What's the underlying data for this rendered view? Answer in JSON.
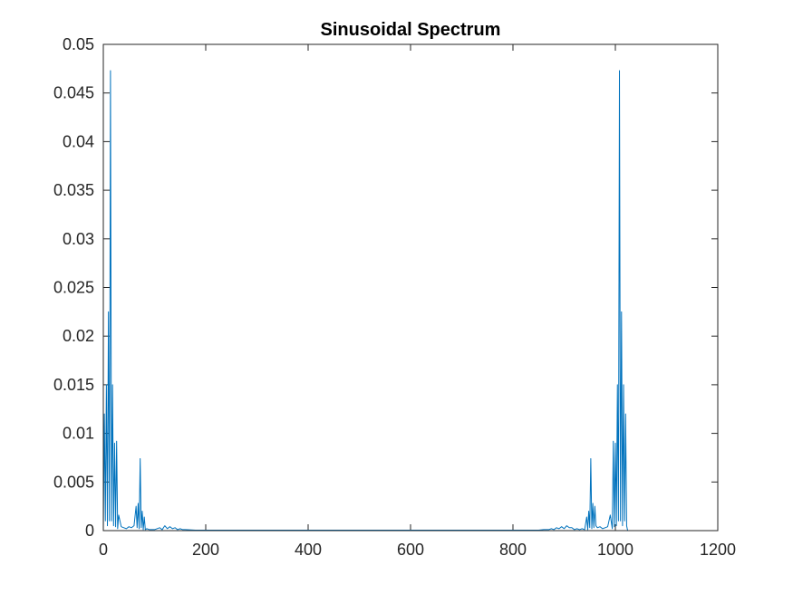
{
  "chart_data": {
    "type": "line",
    "title": "Sinusoidal Spectrum",
    "xlabel": "",
    "ylabel": "",
    "xlim": [
      0,
      1200
    ],
    "ylim": [
      0,
      0.05
    ],
    "xticks": [
      0,
      200,
      400,
      600,
      800,
      1000,
      1200
    ],
    "xtick_labels": [
      "0",
      "200",
      "400",
      "600",
      "800",
      "1000",
      "1200"
    ],
    "yticks": [
      0,
      0.005,
      0.01,
      0.015,
      0.02,
      0.025,
      0.03,
      0.035,
      0.04,
      0.045,
      0.05
    ],
    "ytick_labels": [
      "0",
      "0.005",
      "0.01",
      "0.015",
      "0.02",
      "0.025",
      "0.03",
      "0.035",
      "0.04",
      "0.045",
      "0.05"
    ],
    "grid": false,
    "line_color": "#0072BD",
    "axis_color": "#262626",
    "series": [
      {
        "x": [
          0,
          2,
          4,
          6,
          8,
          10,
          12,
          14,
          16,
          18,
          20,
          22,
          24,
          26,
          28,
          30,
          35,
          40,
          45,
          50,
          55,
          60,
          64,
          66,
          68,
          70,
          72,
          74,
          76,
          78,
          80,
          82,
          85,
          90,
          100,
          110,
          115,
          120,
          125,
          130,
          135,
          140,
          145,
          150,
          155,
          160,
          180,
          200,
          300,
          400,
          500,
          600,
          700,
          800,
          850,
          860,
          870,
          875,
          880,
          885,
          890,
          895,
          900,
          905,
          910,
          915,
          920,
          925,
          930,
          935,
          940,
          944,
          946,
          948,
          950,
          952,
          954,
          956,
          958,
          960,
          962,
          965,
          970,
          975,
          980,
          985,
          990,
          994,
          996,
          998,
          1000,
          1002,
          1004,
          1006,
          1008,
          1010,
          1012,
          1014,
          1016,
          1018,
          1020,
          1022,
          1024
        ],
        "y": [
          0.0,
          0.012,
          0.001,
          0.015,
          0.0005,
          0.0225,
          0.001,
          0.0473,
          0.001,
          0.015,
          0.0005,
          0.009,
          0.0004,
          0.0092,
          0.0002,
          0.0016,
          0.0004,
          0.0003,
          0.0002,
          0.0004,
          0.0003,
          0.0005,
          0.0025,
          0.0003,
          0.0028,
          0.0002,
          0.0074,
          0.0003,
          0.002,
          0.0001,
          0.0014,
          0.0001,
          0.0002,
          0.0001,
          0.0001,
          0.0003,
          0.0001,
          0.0005,
          0.0002,
          0.0004,
          0.0002,
          0.0003,
          0.0001,
          0.0002,
          0.0001,
          0.0001,
          5e-05,
          5e-05,
          5e-05,
          5e-05,
          5e-05,
          5e-05,
          5e-05,
          5e-05,
          5e-05,
          0.0001,
          0.0001,
          0.0002,
          0.0001,
          0.0003,
          0.0002,
          0.0004,
          0.0002,
          0.0005,
          0.0003,
          0.0003,
          0.0001,
          0.0002,
          0.0001,
          0.0002,
          0.0001,
          0.0014,
          0.0001,
          0.002,
          0.0003,
          0.0074,
          0.0002,
          0.0028,
          0.0003,
          0.0025,
          0.0005,
          0.0003,
          0.0004,
          0.0002,
          0.0003,
          0.0004,
          0.0016,
          0.0002,
          0.0092,
          0.0004,
          0.009,
          0.0005,
          0.015,
          0.001,
          0.0473,
          0.001,
          0.0225,
          0.0005,
          0.015,
          0.001,
          0.012,
          0.0005,
          0.0
        ]
      }
    ]
  }
}
